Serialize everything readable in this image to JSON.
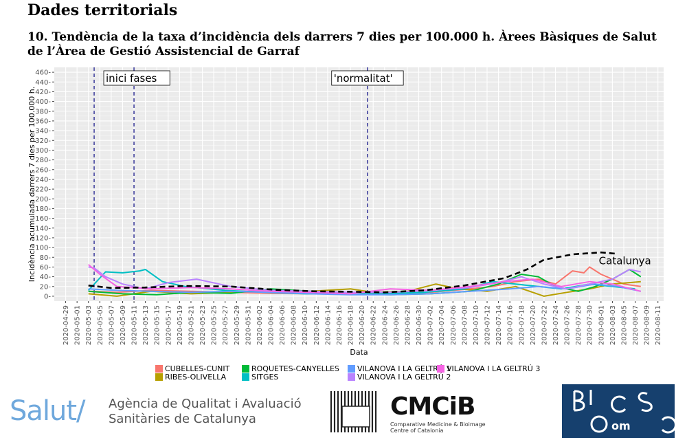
{
  "section_title": "Dades territorials",
  "figure_title": "10. Tendència de la taxa d’incidència dels darrers 7 dies per 100.000 h. Àrees Bàsiques de Salut de l’Àrea de Gestió Assistencial de Garraf",
  "footer": {
    "salut_logo_text": "Salut/",
    "agency_line1": "Agència de Qualitat i Avaluació",
    "agency_line2": "Sanitàries de Catalunya",
    "cmcib_text": "CMCiB",
    "cmcib_sub1": "Comparative Medicine & Bioimage",
    "cmcib_sub2": "Centre of Catalonia",
    "biocomsc_letters": "BIOCOMSC"
  },
  "chart_data": {
    "type": "line",
    "xlabel": "Data",
    "ylabel": "Incidència acumulada darrers 7 dies per 100.000 h.",
    "x_start": "2020-04-29",
    "x_end": "2020-08-11",
    "xlim": [
      "2020-04-27",
      "2020-08-12"
    ],
    "ylim": [
      -10,
      470
    ],
    "y_ticks": [
      0,
      20,
      40,
      60,
      80,
      100,
      120,
      140,
      160,
      180,
      200,
      220,
      240,
      260,
      280,
      300,
      320,
      340,
      360,
      380,
      400,
      420,
      440,
      460
    ],
    "x_tick_labels": [
      "2020-04-29",
      "2020-05-01",
      "2020-05-03",
      "2020-05-05",
      "2020-05-07",
      "2020-05-09",
      "2020-05-11",
      "2020-05-13",
      "2020-05-15",
      "2020-05-17",
      "2020-05-19",
      "2020-05-21",
      "2020-05-23",
      "2020-05-25",
      "2020-05-27",
      "2020-05-29",
      "2020-05-31",
      "2020-06-02",
      "2020-06-04",
      "2020-06-06",
      "2020-06-08",
      "2020-06-10",
      "2020-06-12",
      "2020-06-14",
      "2020-06-16",
      "2020-06-18",
      "2020-06-20",
      "2020-06-22",
      "2020-06-24",
      "2020-06-26",
      "2020-06-28",
      "2020-06-30",
      "2020-07-02",
      "2020-07-04",
      "2020-07-06",
      "2020-07-08",
      "2020-07-10",
      "2020-07-12",
      "2020-07-14",
      "2020-07-16",
      "2020-07-18",
      "2020-07-20",
      "2020-07-22",
      "2020-07-24",
      "2020-07-26",
      "2020-07-28",
      "2020-07-30",
      "2020-08-01",
      "2020-08-03",
      "2020-08-05",
      "2020-08-07",
      "2020-08-09",
      "2020-08-11"
    ],
    "grid": true,
    "background": "#ebebeb",
    "vlines": [
      {
        "date": "2020-05-04",
        "label": ""
      },
      {
        "date": "2020-05-11",
        "label": "inici fases"
      },
      {
        "date": "2020-06-21",
        "label": "'normalitat'"
      }
    ],
    "legend_position": "bottom",
    "reference": {
      "name": "Catalunya",
      "color": "#000000",
      "dashed": true,
      "x": [
        "2020-05-03",
        "2020-05-07",
        "2020-05-13",
        "2020-05-20",
        "2020-05-28",
        "2020-06-05",
        "2020-06-12",
        "2020-06-19",
        "2020-06-24",
        "2020-07-01",
        "2020-07-08",
        "2020-07-15",
        "2020-07-19",
        "2020-07-22",
        "2020-07-27",
        "2020-08-01",
        "2020-08-04"
      ],
      "values": [
        22,
        17,
        18,
        21,
        20,
        13,
        10,
        9,
        8,
        12,
        22,
        37,
        55,
        75,
        86,
        90,
        87
      ]
    },
    "series": [
      {
        "name": "CUBELLES-CUNIT",
        "color": "#f8766d",
        "x": [
          "2020-05-03",
          "2020-05-08",
          "2020-05-14",
          "2020-05-21",
          "2020-05-28",
          "2020-06-04",
          "2020-06-11",
          "2020-06-18",
          "2020-06-25",
          "2020-07-02",
          "2020-07-09",
          "2020-07-13",
          "2020-07-17",
          "2020-07-21",
          "2020-07-24",
          "2020-07-27",
          "2020-07-29",
          "2020-07-30",
          "2020-08-01",
          "2020-08-03",
          "2020-08-05",
          "2020-08-08"
        ],
        "values": [
          10,
          8,
          12,
          10,
          8,
          6,
          5,
          5,
          6,
          8,
          15,
          20,
          30,
          35,
          25,
          52,
          48,
          60,
          45,
          35,
          25,
          20
        ]
      },
      {
        "name": "RIBES-OLIVELLA",
        "color": "#b79f00",
        "x": [
          "2020-05-03",
          "2020-05-08",
          "2020-05-14",
          "2020-05-21",
          "2020-05-28",
          "2020-06-04",
          "2020-06-11",
          "2020-06-18",
          "2020-06-22",
          "2020-06-28",
          "2020-07-03",
          "2020-07-07",
          "2020-07-12",
          "2020-07-17",
          "2020-07-22",
          "2020-07-26",
          "2020-07-30",
          "2020-08-03",
          "2020-08-08"
        ],
        "values": [
          5,
          0,
          10,
          5,
          8,
          12,
          10,
          15,
          8,
          10,
          25,
          15,
          10,
          20,
          0,
          8,
          15,
          25,
          30
        ]
      },
      {
        "name": "ROQUETES-CANYELLES",
        "color": "#00ba38",
        "x": [
          "2020-05-03",
          "2020-05-09",
          "2020-05-15",
          "2020-05-21",
          "2020-05-28",
          "2020-06-04",
          "2020-06-11",
          "2020-06-18",
          "2020-06-25",
          "2020-07-02",
          "2020-07-09",
          "2020-07-14",
          "2020-07-18",
          "2020-07-21",
          "2020-07-24",
          "2020-07-28",
          "2020-07-31",
          "2020-08-03",
          "2020-08-06",
          "2020-08-08"
        ],
        "values": [
          10,
          5,
          3,
          8,
          6,
          15,
          10,
          5,
          3,
          5,
          10,
          25,
          45,
          40,
          20,
          10,
          20,
          35,
          55,
          40
        ]
      },
      {
        "name": "SITGES",
        "color": "#00bfc4",
        "x": [
          "2020-05-03",
          "2020-05-06",
          "2020-05-09",
          "2020-05-12",
          "2020-05-13",
          "2020-05-16",
          "2020-05-20",
          "2020-05-27",
          "2020-06-03",
          "2020-06-10",
          "2020-06-17",
          "2020-06-24",
          "2020-07-01",
          "2020-07-08",
          "2020-07-13",
          "2020-07-17",
          "2020-07-21",
          "2020-07-25",
          "2020-07-30",
          "2020-08-03",
          "2020-08-07"
        ],
        "values": [
          12,
          50,
          48,
          52,
          55,
          30,
          20,
          12,
          8,
          5,
          5,
          5,
          8,
          15,
          30,
          25,
          20,
          15,
          25,
          20,
          15
        ]
      },
      {
        "name": "VILANOVA I LA GELTRÚ 1",
        "color": "#619cff",
        "x": [
          "2020-05-03",
          "2020-05-08",
          "2020-05-14",
          "2020-05-21",
          "2020-05-28",
          "2020-06-04",
          "2020-06-11",
          "2020-06-18",
          "2020-06-25",
          "2020-07-02",
          "2020-07-09",
          "2020-07-16",
          "2020-07-21",
          "2020-07-26",
          "2020-07-31",
          "2020-08-04",
          "2020-08-08"
        ],
        "values": [
          15,
          12,
          10,
          8,
          10,
          8,
          5,
          3,
          3,
          5,
          10,
          15,
          20,
          15,
          25,
          20,
          10
        ]
      },
      {
        "name": "VILANOVA I LA GELTRÚ 2",
        "color": "#b983ff",
        "x": [
          "2020-05-03",
          "2020-05-04",
          "2020-05-06",
          "2020-05-09",
          "2020-05-13",
          "2020-05-17",
          "2020-05-22",
          "2020-05-28",
          "2020-06-04",
          "2020-06-11",
          "2020-06-18",
          "2020-06-25",
          "2020-07-02",
          "2020-07-09",
          "2020-07-14",
          "2020-07-18",
          "2020-07-22",
          "2020-07-26",
          "2020-07-30",
          "2020-08-03",
          "2020-08-06",
          "2020-08-08"
        ],
        "values": [
          60,
          58,
          40,
          25,
          15,
          28,
          35,
          20,
          12,
          10,
          8,
          8,
          12,
          18,
          28,
          40,
          25,
          15,
          25,
          35,
          55,
          50
        ]
      },
      {
        "name": "VILANOVA I LA GELTRÚ 3",
        "color": "#f564e3",
        "x": [
          "2020-05-03",
          "2020-05-05",
          "2020-05-08",
          "2020-05-14",
          "2020-05-21",
          "2020-05-28",
          "2020-06-04",
          "2020-06-11",
          "2020-06-18",
          "2020-06-25",
          "2020-07-02",
          "2020-07-09",
          "2020-07-15",
          "2020-07-20",
          "2020-07-25",
          "2020-07-30",
          "2020-08-03",
          "2020-08-08"
        ],
        "values": [
          65,
          45,
          20,
          15,
          18,
          15,
          10,
          8,
          5,
          15,
          12,
          20,
          30,
          35,
          20,
          30,
          25,
          10
        ]
      }
    ]
  }
}
